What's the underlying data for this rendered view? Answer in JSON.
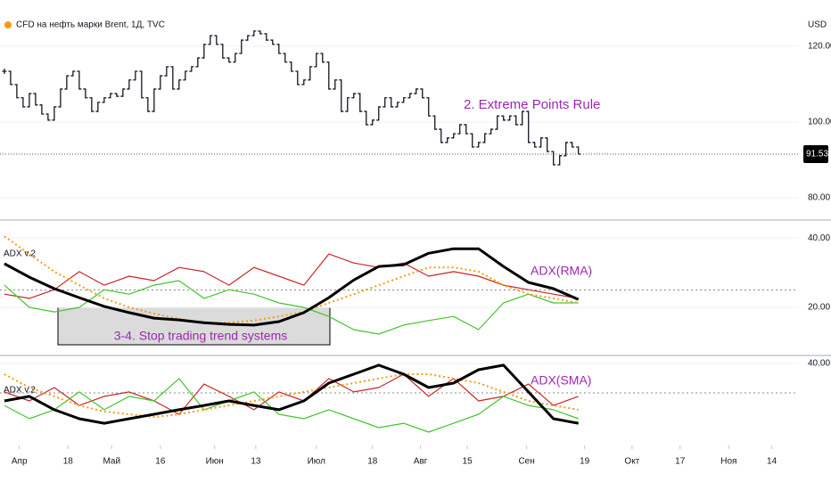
{
  "chart_data": [
    {
      "type": "price",
      "title": "CFD на нефть марки Brent, 1Д, TVC",
      "unit": "USD",
      "color": "#131722",
      "annotations": [
        "2. Extreme Points Rule"
      ],
      "values": [
        113.4,
        109.9,
        106.4,
        104,
        107.5,
        104.5,
        102.1,
        100.5,
        104,
        108.7,
        112.2,
        113.4,
        108.7,
        106.4,
        102.8,
        105.2,
        106.4,
        107.5,
        106.8,
        108.7,
        111.1,
        113.4,
        106.4,
        102.8,
        108.7,
        112.2,
        114.6,
        108.7,
        111.1,
        113.4,
        114.6,
        116.9,
        120.5,
        122.8,
        120.5,
        116.9,
        115.8,
        118.1,
        121.6,
        122.8,
        124,
        123.3,
        121.6,
        120.5,
        118.1,
        115.8,
        113.4,
        109.9,
        111.1,
        114.6,
        118.1,
        115.8,
        108.7,
        111.1,
        102.8,
        106.4,
        107.5,
        102.8,
        99.3,
        100.5,
        104,
        106.4,
        104,
        105.2,
        106.4,
        107.5,
        108.7,
        106.4,
        101.6,
        98.1,
        94.6,
        95.8,
        96.9,
        99.3,
        96.9,
        93.4,
        94.6,
        96.9,
        98.1,
        101.6,
        100.5,
        101.6,
        99.3,
        102.8,
        94.6,
        93.4,
        95.8,
        92.2,
        88.7,
        91.1,
        94.6,
        93.4,
        91.53
      ],
      "xlim": [
        -0.7,
        127.2
      ],
      "ylim": [
        74.6,
        132.2
      ],
      "yticks": [
        {
          "value": 120,
          "label": "120.00"
        },
        {
          "value": 100,
          "label": "100.00"
        },
        {
          "value": 80,
          "label": "80.00"
        }
      ],
      "grid": true
    },
    {
      "type": "line",
      "title": "ADX v.2",
      "annotations": [
        "ADX(RMA)",
        "3-4. Stop trading trend systems"
      ],
      "x": [
        0,
        4,
        8,
        12,
        16,
        20,
        24,
        28,
        32,
        36,
        40,
        44,
        48,
        52,
        56,
        60,
        64,
        68,
        72,
        76,
        80,
        84,
        88,
        92
      ],
      "series": [
        {
          "color": "#c62828",
          "style": "solid",
          "values": [
            23.8,
            22.6,
            25.1,
            30.3,
            26.4,
            29,
            27.7,
            31.5,
            30.3,
            26.4,
            31.5,
            29,
            26.4,
            35.4,
            32.8,
            31.5,
            32.8,
            29,
            30.3,
            29,
            26.4,
            25.1,
            23.8,
            22.6
          ]
        },
        {
          "color": "#43c62d",
          "style": "solid",
          "values": [
            26.4,
            20,
            18.7,
            20,
            25.1,
            23.8,
            26.4,
            27.7,
            22.6,
            25.1,
            23.8,
            21.3,
            20,
            17.4,
            13.6,
            12.3,
            14.9,
            16.2,
            17.4,
            13.6,
            21.3,
            23.8,
            21.3,
            21.3
          ]
        },
        {
          "color": "#f39c12",
          "style": "dotted",
          "values": [
            40.5,
            35.4,
            30.3,
            26.4,
            22.6,
            20,
            18.2,
            16.7,
            15.6,
            15.6,
            16.2,
            17.4,
            18.7,
            21.3,
            23.8,
            26.4,
            29,
            31.5,
            31.5,
            30.3,
            26.4,
            23.8,
            22.6,
            21.3
          ]
        },
        {
          "color": "#000000",
          "style": "bold",
          "values": [
            32.6,
            28.7,
            25.4,
            22.8,
            20.3,
            18.5,
            16.9,
            16.4,
            15.6,
            15.1,
            14.9,
            15.9,
            18.5,
            22.8,
            27.9,
            31.8,
            32.3,
            35.6,
            36.9,
            36.9,
            31.8,
            27.2,
            25.4,
            22.3
          ]
        }
      ],
      "level": 25,
      "xlim": [
        -0.7,
        127.2
      ],
      "ylim": [
        6.4,
        44.4
      ],
      "yticks": [
        {
          "value": 40,
          "label": "40.00"
        },
        {
          "value": 20,
          "label": "20.00"
        }
      ],
      "grid": true
    },
    {
      "type": "line",
      "title": "ADX v.2",
      "annotations": [
        "ADX(SMA)"
      ],
      "x": [
        0,
        4,
        8,
        12,
        16,
        20,
        24,
        28,
        32,
        36,
        40,
        44,
        48,
        52,
        56,
        60,
        64,
        68,
        72,
        76,
        80,
        84,
        88,
        92
      ],
      "series": [
        {
          "color": "#c62828",
          "style": "solid",
          "values": [
            25.5,
            20.9,
            27.7,
            18.6,
            23.2,
            25.5,
            20.9,
            14.1,
            29.5,
            23.2,
            16.4,
            25.5,
            20.9,
            32.3,
            25.5,
            27.7,
            34.5,
            23.2,
            32.3,
            20.9,
            23.2,
            29.5,
            18.6,
            23.2
          ]
        },
        {
          "color": "#43c62d",
          "style": "solid",
          "values": [
            18.6,
            11.8,
            16.4,
            25.5,
            16.4,
            23.2,
            20.9,
            32.3,
            16.4,
            20.9,
            25.5,
            14.1,
            11.8,
            16.4,
            11.8,
            7.3,
            9.5,
            5,
            9.5,
            14.1,
            23.2,
            18.6,
            16.4,
            11.8
          ]
        },
        {
          "color": "#f39c12",
          "style": "dotted",
          "values": [
            34.5,
            27.7,
            23.2,
            18.6,
            15.5,
            14.1,
            12.7,
            14.1,
            16.4,
            18.6,
            20.9,
            23.2,
            25.5,
            27.7,
            30,
            32.3,
            34.5,
            34.5,
            32.3,
            30,
            25.5,
            20.9,
            18.6,
            16.4
          ]
        },
        {
          "color": "#000000",
          "style": "bold",
          "values": [
            20.9,
            23.2,
            16.4,
            11.8,
            9.5,
            11.8,
            14.1,
            16.4,
            18.6,
            20.9,
            18.6,
            16.4,
            20.9,
            30,
            34.5,
            39.1,
            34.5,
            27.7,
            30,
            36.8,
            39.1,
            25.5,
            11.8,
            9.5
          ]
        }
      ],
      "level": 25,
      "xlim": [
        -0.7,
        127.2
      ],
      "ylim": [
        -1.8,
        43.6
      ],
      "yticks": [
        {
          "value": 40,
          "label": "40.00"
        }
      ],
      "grid": true,
      "xticks": [
        {
          "value": 2.4,
          "label": "Апр"
        },
        {
          "value": 10.2,
          "label": "18"
        },
        {
          "value": 17.2,
          "label": "Май"
        },
        {
          "value": 25,
          "label": "16"
        },
        {
          "value": 33.7,
          "label": "Июн"
        },
        {
          "value": 40.3,
          "label": "13"
        },
        {
          "value": 50,
          "label": "Июл"
        },
        {
          "value": 59,
          "label": "18"
        },
        {
          "value": 66.7,
          "label": "Авг"
        },
        {
          "value": 74.2,
          "label": "15"
        },
        {
          "value": 83.7,
          "label": "Сен"
        },
        {
          "value": 93,
          "label": "19"
        },
        {
          "value": 100.6,
          "label": "Окт"
        },
        {
          "value": 108.3,
          "label": "17"
        },
        {
          "value": 116.1,
          "label": "Ноя"
        },
        {
          "value": 123,
          "label": "14"
        }
      ]
    }
  ]
}
